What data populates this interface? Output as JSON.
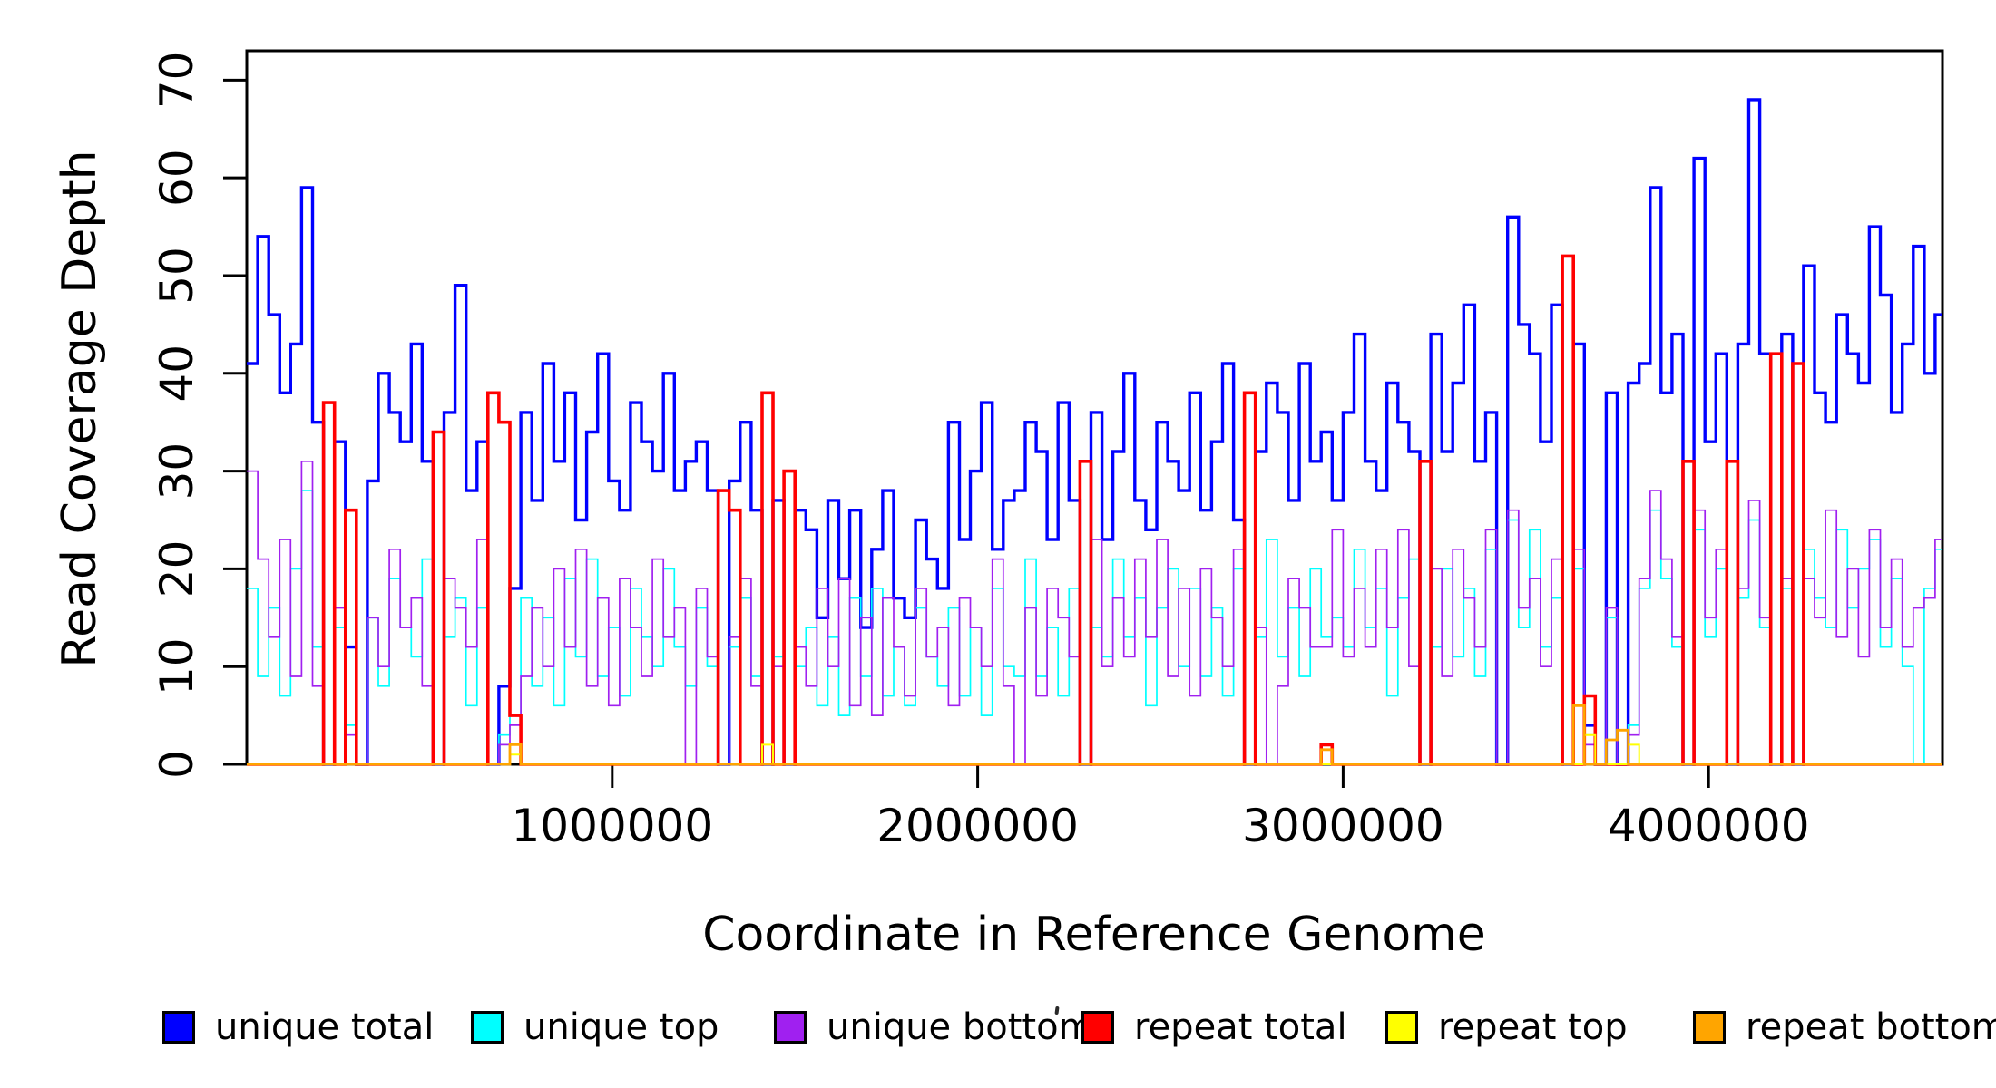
{
  "figure": {
    "background": "#FFFFFF",
    "axis_color": "#000000"
  },
  "chart_data": {
    "type": "line",
    "subtype": "step-coverage-plot",
    "title": "",
    "xlabel": "Coordinate in Reference Genome",
    "ylabel": "Read Coverage Depth",
    "xlim": [
      0,
      4640000
    ],
    "ylim": [
      0,
      73
    ],
    "grid": false,
    "legend_position": "bottom",
    "bin_size": 30000,
    "x_ticks": [
      1000000,
      2000000,
      3000000,
      4000000
    ],
    "x_tick_labels": [
      "1000000",
      "2000000",
      "3000000",
      "4000000"
    ],
    "y_ticks": [
      0,
      10,
      20,
      30,
      40,
      50,
      60,
      70
    ],
    "y_tick_labels": [
      "0",
      "10",
      "20",
      "30",
      "40",
      "50",
      "60",
      "70"
    ],
    "series": [
      {
        "name": "unique total",
        "color": "#0000FF",
        "line_width": 3.4,
        "values": [
          41,
          54,
          46,
          38,
          43,
          59,
          35,
          0,
          33,
          12,
          0,
          29,
          40,
          36,
          33,
          43,
          31,
          0,
          36,
          49,
          28,
          33,
          0,
          8,
          18,
          36,
          27,
          41,
          31,
          38,
          25,
          34,
          42,
          29,
          26,
          37,
          33,
          30,
          40,
          28,
          31,
          33,
          28,
          0,
          29,
          35,
          26,
          0,
          27,
          0,
          26,
          24,
          15,
          27,
          19,
          26,
          14,
          22,
          28,
          17,
          15,
          25,
          21,
          18,
          35,
          23,
          30,
          37,
          22,
          27,
          28,
          35,
          32,
          23,
          37,
          27,
          0,
          36,
          23,
          32,
          40,
          27,
          24,
          35,
          31,
          28,
          38,
          26,
          33,
          41,
          25,
          0,
          32,
          39,
          36,
          27,
          41,
          31,
          34,
          27,
          36,
          44,
          31,
          28,
          39,
          35,
          32,
          0,
          44,
          32,
          39,
          47,
          31,
          36,
          0,
          56,
          45,
          42,
          33,
          47,
          0,
          43,
          4,
          0,
          38,
          0,
          39,
          41,
          59,
          38,
          44,
          0,
          62,
          33,
          42,
          0,
          43,
          68,
          42,
          0,
          44,
          0,
          51,
          38,
          35,
          46,
          42,
          39,
          55,
          48,
          36,
          43,
          53,
          40,
          46
        ]
      },
      {
        "name": "unique top",
        "color": "#00FFFF",
        "line_width": 1.7,
        "values": [
          18,
          9,
          16,
          7,
          20,
          28,
          12,
          0,
          14,
          4,
          0,
          15,
          8,
          19,
          14,
          11,
          21,
          0,
          13,
          17,
          6,
          16,
          0,
          3,
          5,
          17,
          8,
          15,
          6,
          19,
          11,
          21,
          9,
          14,
          7,
          18,
          13,
          10,
          20,
          12,
          8,
          16,
          10,
          0,
          12,
          17,
          9,
          0,
          11,
          0,
          10,
          14,
          6,
          13,
          5,
          17,
          9,
          18,
          7,
          12,
          6,
          16,
          11,
          8,
          16,
          7,
          14,
          5,
          18,
          10,
          9,
          21,
          9,
          14,
          7,
          18,
          0,
          14,
          11,
          21,
          13,
          17,
          6,
          16,
          20,
          10,
          18,
          9,
          16,
          7,
          20,
          0,
          13,
          23,
          11,
          16,
          9,
          20,
          13,
          15,
          12,
          22,
          14,
          18,
          7,
          17,
          21,
          0,
          12,
          20,
          11,
          18,
          9,
          22,
          0,
          25,
          14,
          24,
          12,
          17,
          0,
          20,
          3,
          0,
          15,
          0,
          4,
          18,
          26,
          19,
          12,
          0,
          24,
          13,
          20,
          0,
          17,
          25,
          14,
          0,
          18,
          0,
          22,
          17,
          14,
          24,
          16,
          20,
          23,
          12,
          19,
          10,
          0,
          18,
          22
        ]
      },
      {
        "name": "unique bottom",
        "color": "#A020F0",
        "line_width": 1.7,
        "values": [
          30,
          21,
          13,
          23,
          9,
          31,
          8,
          0,
          16,
          3,
          0,
          15,
          10,
          22,
          14,
          17,
          8,
          0,
          19,
          16,
          12,
          23,
          0,
          2,
          4,
          9,
          16,
          10,
          20,
          12,
          22,
          8,
          17,
          6,
          19,
          14,
          9,
          21,
          13,
          16,
          0,
          18,
          11,
          0,
          13,
          19,
          8,
          0,
          10,
          0,
          12,
          8,
          18,
          10,
          19,
          6,
          15,
          5,
          17,
          12,
          7,
          18,
          11,
          14,
          6,
          17,
          14,
          10,
          21,
          8,
          0,
          16,
          7,
          18,
          15,
          11,
          0,
          23,
          10,
          17,
          11,
          21,
          13,
          23,
          9,
          18,
          7,
          20,
          15,
          10,
          22,
          0,
          14,
          0,
          8,
          19,
          16,
          12,
          12,
          24,
          11,
          18,
          12,
          22,
          14,
          24,
          10,
          0,
          20,
          9,
          22,
          17,
          12,
          24,
          0,
          26,
          16,
          19,
          10,
          21,
          0,
          22,
          2,
          0,
          16,
          0,
          3,
          19,
          28,
          21,
          13,
          0,
          26,
          15,
          22,
          0,
          18,
          27,
          15,
          0,
          19,
          0,
          19,
          15,
          26,
          13,
          20,
          11,
          24,
          14,
          21,
          12,
          16,
          17,
          23
        ]
      },
      {
        "name": "repeat total",
        "color": "#FF0000",
        "line_width": 3.6,
        "values": [
          0,
          0,
          0,
          0,
          0,
          0,
          0,
          37,
          0,
          26,
          0,
          0,
          0,
          0,
          0,
          0,
          0,
          34,
          0,
          0,
          0,
          0,
          38,
          35,
          5,
          0,
          0,
          0,
          0,
          0,
          0,
          0,
          0,
          0,
          0,
          0,
          0,
          0,
          0,
          0,
          0,
          0,
          0,
          28,
          26,
          0,
          0,
          38,
          0,
          30,
          0,
          0,
          0,
          0,
          0,
          0,
          0,
          0,
          0,
          0,
          0,
          0,
          0,
          0,
          0,
          0,
          0,
          0,
          0,
          0,
          0,
          0,
          0,
          0,
          0,
          0,
          31,
          0,
          0,
          0,
          0,
          0,
          0,
          0,
          0,
          0,
          0,
          0,
          0,
          0,
          0,
          38,
          0,
          0,
          0,
          0,
          0,
          0,
          2,
          0,
          0,
          0,
          0,
          0,
          0,
          0,
          0,
          31,
          0,
          0,
          0,
          0,
          0,
          0,
          0,
          0,
          0,
          0,
          0,
          0,
          52,
          0,
          7,
          0,
          0,
          0,
          0,
          0,
          0,
          0,
          0,
          31,
          0,
          0,
          0,
          31,
          0,
          0,
          0,
          42,
          0,
          41,
          0,
          0,
          0,
          0,
          0,
          0,
          0,
          0,
          0,
          0,
          0,
          0,
          0
        ]
      },
      {
        "name": "repeat top",
        "color": "#FFFF00",
        "line_width": 2,
        "values": [
          0,
          0,
          0,
          0,
          0,
          0,
          0,
          0,
          0,
          0,
          0,
          0,
          0,
          0,
          0,
          0,
          0,
          0,
          0,
          0,
          0,
          0,
          0,
          0,
          1,
          0,
          0,
          0,
          0,
          0,
          0,
          0,
          0,
          0,
          0,
          0,
          0,
          0,
          0,
          0,
          0,
          0,
          0,
          0,
          0,
          0,
          0,
          2,
          0,
          0,
          0,
          0,
          0,
          0,
          0,
          0,
          0,
          0,
          0,
          0,
          0,
          0,
          0,
          0,
          0,
          0,
          0,
          0,
          0,
          0,
          0,
          0,
          0,
          0,
          0,
          0,
          0,
          0,
          0,
          0,
          0,
          0,
          0,
          0,
          0,
          0,
          0,
          0,
          0,
          0,
          0,
          0,
          0,
          0,
          0,
          0,
          0,
          0,
          0,
          0,
          0,
          0,
          0,
          0,
          0,
          0,
          0,
          0,
          0,
          0,
          0,
          0,
          0,
          0,
          0,
          0,
          0,
          0,
          0,
          0,
          0,
          0,
          3,
          0,
          0,
          0,
          2,
          0,
          0,
          0,
          0,
          0,
          0,
          0,
          0,
          0,
          0,
          0,
          0,
          0,
          0,
          0,
          0,
          0,
          0,
          0,
          0,
          0,
          0,
          0,
          0,
          0,
          0,
          0,
          0
        ]
      },
      {
        "name": "repeat bottom",
        "color": "#FFA500",
        "line_width": 2.8,
        "values": [
          0,
          0,
          0,
          0,
          0,
          0,
          0,
          0,
          0,
          0,
          0,
          0,
          0,
          0,
          0,
          0,
          0,
          0,
          0,
          0,
          0,
          0,
          0,
          0,
          2,
          0,
          0,
          0,
          0,
          0,
          0,
          0,
          0,
          0,
          0,
          0,
          0,
          0,
          0,
          0,
          0,
          0,
          0,
          0,
          0,
          0,
          0,
          0,
          0,
          0,
          0,
          0,
          0,
          0,
          0,
          0,
          0,
          0,
          0,
          0,
          0,
          0,
          0,
          0,
          0,
          0,
          0,
          0,
          0,
          0,
          0,
          0,
          0,
          0,
          0,
          0,
          0,
          0,
          0,
          0,
          0,
          0,
          0,
          0,
          0,
          0,
          0,
          0,
          0,
          0,
          0,
          0,
          0,
          0,
          0,
          0,
          0,
          0,
          1.5,
          0,
          0,
          0,
          0,
          0,
          0,
          0,
          0,
          0,
          0,
          0,
          0,
          0,
          0,
          0,
          0,
          0,
          0,
          0,
          0,
          0,
          0,
          6,
          0,
          0,
          2.5,
          3.5,
          0,
          0,
          0,
          0,
          0,
          0,
          0,
          0,
          0,
          0,
          0,
          0,
          0,
          0,
          0,
          0,
          0,
          0,
          0,
          0,
          0,
          0,
          0,
          0,
          0,
          0,
          0,
          0
        ]
      }
    ]
  }
}
